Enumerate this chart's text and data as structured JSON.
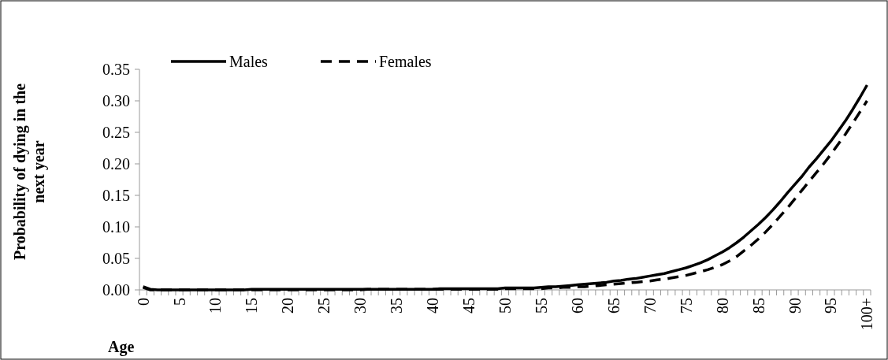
{
  "chart_data": {
    "type": "line",
    "ylabel": "Probability of dying in the next year",
    "xlabel": "Age",
    "categories": [
      "0",
      null,
      null,
      null,
      null,
      "5",
      null,
      null,
      null,
      null,
      "10",
      null,
      null,
      null,
      null,
      "15",
      null,
      null,
      null,
      null,
      "20",
      null,
      null,
      null,
      null,
      "25",
      null,
      null,
      null,
      null,
      "30",
      null,
      null,
      null,
      null,
      "35",
      null,
      null,
      null,
      null,
      "40",
      null,
      null,
      null,
      null,
      "45",
      null,
      null,
      null,
      null,
      "50",
      null,
      null,
      null,
      null,
      "55",
      null,
      null,
      null,
      null,
      "60",
      null,
      null,
      null,
      null,
      "65",
      null,
      null,
      null,
      null,
      "70",
      null,
      null,
      null,
      null,
      "75",
      null,
      null,
      null,
      null,
      "80",
      null,
      null,
      null,
      null,
      "85",
      null,
      null,
      null,
      null,
      "90",
      null,
      null,
      null,
      null,
      "95",
      null,
      null,
      null,
      null,
      "100+"
    ],
    "series": [
      {
        "name": "Males",
        "color": "#000000",
        "line_style": "solid",
        "values": [
          0.005,
          0.001,
          0,
          0,
          0,
          0,
          0,
          0,
          0,
          0,
          0,
          0,
          0,
          0,
          0,
          0.001,
          0.001,
          0.001,
          0.001,
          0.001,
          0.001,
          0.001,
          0.001,
          0.001,
          0.001,
          0.001,
          0.001,
          0.001,
          0.001,
          0.001,
          0.001,
          0.001,
          0.001,
          0.001,
          0.001,
          0.001,
          0.001,
          0.001,
          0.001,
          0.001,
          0.001,
          0.002,
          0.002,
          0.002,
          0.002,
          0.002,
          0.002,
          0.002,
          0.002,
          0.002,
          0.003,
          0.003,
          0.003,
          0.003,
          0.003,
          0.004,
          0.005,
          0.005,
          0.006,
          0.007,
          0.008,
          0.009,
          0.01,
          0.011,
          0.012,
          0.014,
          0.015,
          0.017,
          0.018,
          0.02,
          0.022,
          0.024,
          0.026,
          0.029,
          0.032,
          0.035,
          0.039,
          0.043,
          0.048,
          0.054,
          0.06,
          0.067,
          0.075,
          0.084,
          0.094,
          0.104,
          0.115,
          0.127,
          0.14,
          0.154,
          0.167,
          0.18,
          0.195,
          0.208,
          0.222,
          0.236,
          0.252,
          0.268,
          0.286,
          0.305,
          0.325
        ]
      },
      {
        "name": "Females",
        "color": "#000000",
        "line_style": "dashed",
        "values": [
          0.004,
          0,
          0,
          0,
          0,
          0,
          0,
          0,
          0,
          0,
          0,
          0,
          0,
          0,
          0,
          0,
          0,
          0,
          0,
          0,
          0,
          0,
          0,
          0,
          0,
          0,
          0,
          0,
          0,
          0,
          0,
          0.001,
          0.001,
          0.001,
          0.001,
          0.001,
          0.001,
          0.001,
          0.001,
          0.001,
          0.001,
          0.001,
          0.001,
          0.001,
          0.001,
          0.001,
          0.001,
          0.001,
          0.001,
          0.001,
          0.002,
          0.002,
          0.002,
          0.002,
          0.002,
          0.002,
          0.003,
          0.003,
          0.004,
          0.004,
          0.005,
          0.005,
          0.006,
          0.007,
          0.008,
          0.009,
          0.01,
          0.011,
          0.012,
          0.013,
          0.014,
          0.016,
          0.017,
          0.019,
          0.021,
          0.023,
          0.026,
          0.029,
          0.032,
          0.036,
          0.04,
          0.046,
          0.053,
          0.062,
          0.071,
          0.081,
          0.092,
          0.104,
          0.117,
          0.13,
          0.144,
          0.158,
          0.172,
          0.186,
          0.2,
          0.215,
          0.231,
          0.247,
          0.264,
          0.282,
          0.3
        ]
      }
    ],
    "ylim": [
      0,
      0.35
    ],
    "yticks": [
      {
        "value": 0,
        "label": "0.00"
      },
      {
        "value": 0.05,
        "label": "0.05"
      },
      {
        "value": 0.1,
        "label": "0.10"
      },
      {
        "value": 0.15,
        "label": "0.15"
      },
      {
        "value": 0.2,
        "label": "0.20"
      },
      {
        "value": 0.25,
        "label": "0.25"
      },
      {
        "value": 0.3,
        "label": "0.30"
      },
      {
        "value": 0.35,
        "label": "0.35"
      }
    ],
    "legend": "top left",
    "grid": false
  }
}
